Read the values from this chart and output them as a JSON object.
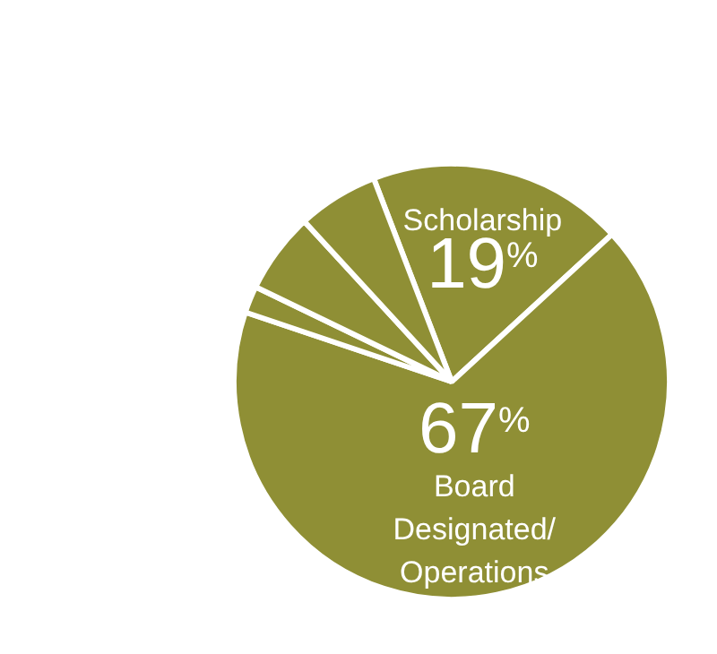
{
  "chart_data": {
    "type": "pie",
    "categories": [
      "Scholarship",
      "Board Designated/ Operations",
      null,
      null,
      null
    ],
    "values": [
      19,
      67,
      2,
      6,
      6
    ],
    "colors": [
      "#8f8f35",
      "#8f8f35",
      "#8f8f35",
      "#8f8f35",
      "#8f8f35"
    ],
    "value_labels": [
      "19%",
      "67%",
      null,
      null,
      null
    ],
    "legend": false
  }
}
